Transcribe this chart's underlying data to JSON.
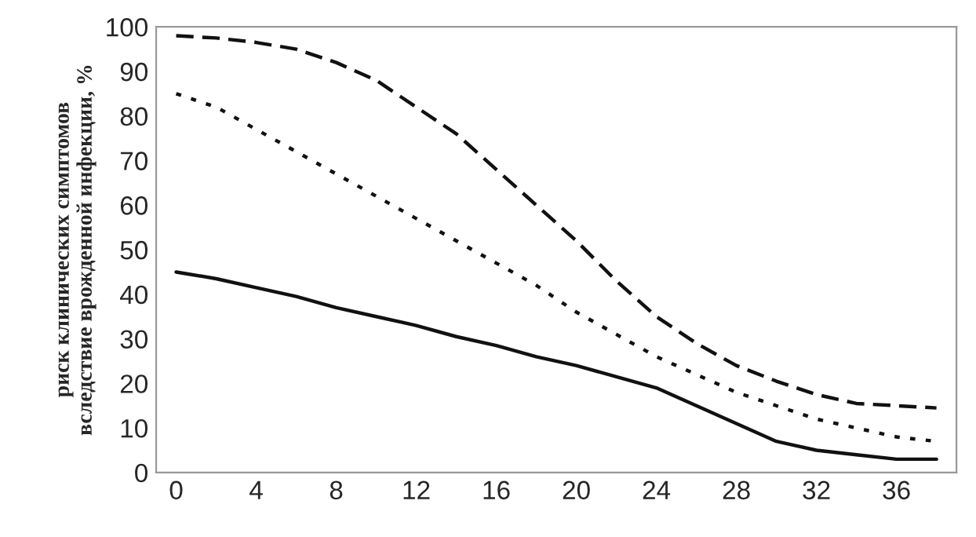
{
  "chart_data": {
    "type": "line",
    "ylabel": "риск клинических симптомов\nвследствие врожденной инфекции, %",
    "x": [
      0,
      2,
      4,
      6,
      8,
      10,
      12,
      14,
      16,
      18,
      20,
      22,
      24,
      26,
      28,
      30,
      32,
      34,
      36,
      38
    ],
    "series": [
      {
        "color": "#111111",
        "line_style": "dashed",
        "values": [
          98,
          97.5,
          96.5,
          95,
          92,
          88,
          82,
          76,
          68,
          60,
          52,
          43,
          35,
          29,
          24,
          20.5,
          17.5,
          15.5,
          15,
          14.5
        ]
      },
      {
        "color": "#111111",
        "line_style": "dotted",
        "values": [
          85,
          82,
          77,
          72,
          67,
          62,
          57,
          52,
          47,
          42,
          36,
          31,
          26,
          22,
          18,
          15,
          12,
          10,
          8,
          7
        ]
      },
      {
        "color": "#111111",
        "line_style": "solid",
        "values": [
          45,
          43.5,
          41.5,
          39.5,
          37,
          35,
          33,
          30.5,
          28.5,
          26,
          24,
          21.5,
          19,
          15,
          11,
          7,
          5,
          4,
          3,
          3
        ]
      }
    ],
    "xlim": [
      -1,
      39
    ],
    "xticks": [
      0,
      4,
      8,
      12,
      16,
      20,
      24,
      28,
      32,
      36
    ],
    "ylim": [
      0,
      100
    ],
    "yticks": [
      0,
      10,
      20,
      30,
      40,
      50,
      60,
      70,
      80,
      90,
      100
    ]
  }
}
